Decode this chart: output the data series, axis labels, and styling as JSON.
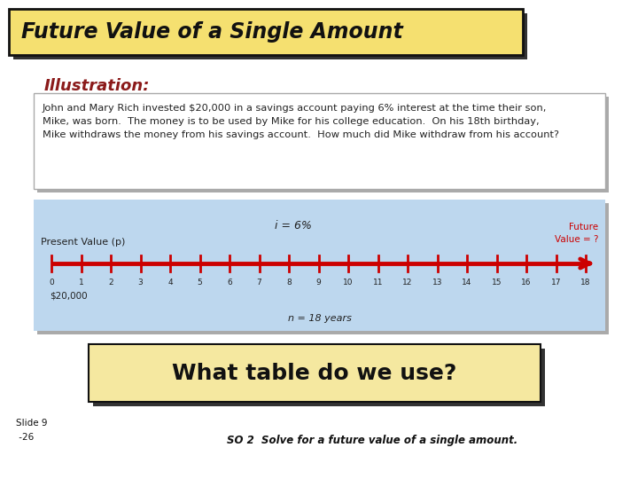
{
  "title": "Future Value of a Single Amount",
  "title_bg": "#F5E070",
  "title_border": "#111111",
  "illustration_label": "Illustration:",
  "illustration_color": "#8B1A1A",
  "problem_text": "John and Mary Rich invested $20,000 in a savings account paying 6% interest at the time their son,\nMike, was born.  The money is to be used by Mike for his college education.  On his 18th birthday,\nMike withdraws the money from his savings account.  How much did Mike withdraw from his account?",
  "problem_box_bg": "#FFFFFF",
  "problem_box_border": "#AAAAAA",
  "timeline_bg": "#BDD7EE",
  "timeline_color": "#CC0000",
  "present_value_label": "Present Value (p)",
  "interest_label": "i = 6%",
  "future_value_label": "Future\nValue = ?",
  "future_value_color": "#CC0000",
  "n_label": "n = 18 years",
  "pv_amount": "$20,000",
  "tick_labels": [
    "0",
    "1",
    "2",
    "3",
    "4",
    "5",
    "6",
    "7",
    "8",
    "9",
    "10",
    "11",
    "12",
    "13",
    "14",
    "15",
    "16",
    "17",
    "18"
  ],
  "what_table_text": "What table do we use?",
  "what_table_bg": "#F5E8A0",
  "what_table_border": "#111111",
  "slide_label": "Slide 9\n -26",
  "so_label": "SO 2  Solve for a future value of a single amount.",
  "bg_color": "#FFFFFF",
  "shadow_color": "#555555",
  "title_shadow_color": "#333333"
}
